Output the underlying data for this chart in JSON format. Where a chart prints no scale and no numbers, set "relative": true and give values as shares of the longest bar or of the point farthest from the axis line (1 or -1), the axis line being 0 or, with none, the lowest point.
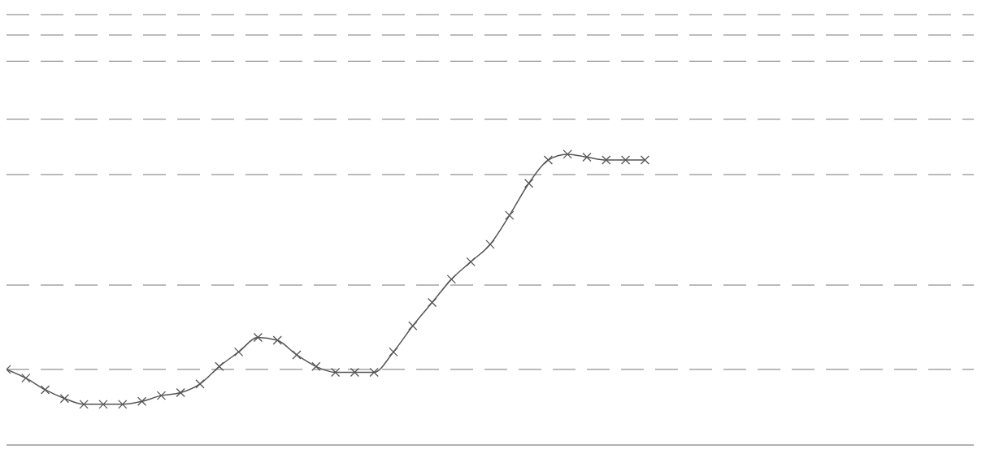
{
  "chart_data": {
    "type": "line",
    "relative": true,
    "categories": [
      null,
      null,
      null,
      null,
      null,
      null,
      null,
      null,
      null,
      null,
      null,
      null,
      null,
      null,
      null,
      null,
      null,
      null,
      null,
      null,
      null,
      null,
      null,
      null,
      null,
      null,
      null,
      null,
      null,
      null,
      null,
      null,
      null,
      null,
      null,
      null,
      null,
      null,
      null,
      null,
      null,
      null,
      null,
      null,
      null,
      null,
      null,
      null,
      null,
      null,
      null
    ],
    "series": [
      {
        "color": "#555555",
        "values": [
          0.26,
          0.23,
          0.19,
          0.16,
          0.14,
          0.14,
          0.14,
          0.15,
          0.17,
          0.18,
          0.21,
          0.27,
          0.32,
          0.37,
          0.36,
          0.31,
          0.27,
          0.25,
          0.25,
          0.25,
          0.32,
          0.41,
          0.49,
          0.57,
          0.63,
          0.69,
          0.79,
          0.9,
          0.98,
          1.0,
          0.99,
          0.98,
          0.98,
          0.98,
          null,
          null,
          null,
          null,
          null,
          null,
          null,
          null,
          null,
          null,
          null,
          null,
          null,
          null,
          null,
          null,
          null
        ]
      }
    ],
    "marker": "cross",
    "line_style": "solid",
    "ref_lines": [
      {
        "axis": "y",
        "value": 1.48,
        "color": "#777777",
        "line_style": "dashed"
      },
      {
        "axis": "y",
        "value": 1.41,
        "color": "#777777",
        "line_style": "dashed"
      },
      {
        "axis": "y",
        "value": 1.32,
        "color": "#777777",
        "line_style": "dashed"
      },
      {
        "axis": "y",
        "value": 1.12,
        "color": "#777777",
        "line_style": "dashed"
      },
      {
        "axis": "y",
        "value": 0.93,
        "color": "#777777",
        "line_style": "dashed"
      },
      {
        "axis": "y",
        "value": 0.55,
        "color": "#777777",
        "line_style": "dashed"
      },
      {
        "axis": "y",
        "value": 0.26,
        "color": "#777777",
        "line_style": "dashed"
      }
    ]
  }
}
